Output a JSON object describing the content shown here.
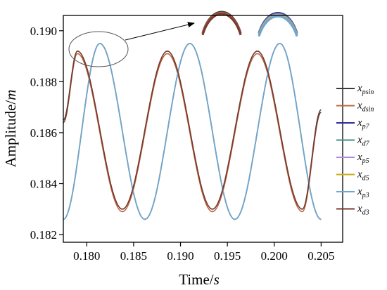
{
  "chart_data": {
    "type": "line",
    "xlabel": {
      "text": "Time/",
      "unit": "s"
    },
    "ylabel": {
      "text": "Amplitude/",
      "unit": "m"
    },
    "xlim": [
      0.1775,
      0.2073
    ],
    "ylim": [
      0.1817,
      0.1906
    ],
    "xticks": [
      0.18,
      0.185,
      0.19,
      0.195,
      0.2,
      0.205
    ],
    "xtick_labels": [
      "0.180",
      "0.185",
      "0.190",
      "0.195",
      "0.200",
      "0.205"
    ],
    "yticks": [
      0.182,
      0.184,
      0.186,
      0.188,
      0.19
    ],
    "ytick_labels": [
      "0.182",
      "0.184",
      "0.186",
      "0.188",
      "0.190"
    ],
    "grid": false,
    "legend_position": "right",
    "inset": "zoomed peaks shown above the plot, with an ellipse around the first peaks and an arrow pointing to the zoom",
    "series": [
      {
        "name": "x_psin",
        "base": "x",
        "sub": "psin",
        "color": "#3a3a3a",
        "x": [
          0.1775,
          0.179,
          0.1838,
          0.1886,
          0.1934,
          0.1982,
          0.203,
          0.205
        ],
        "y": [
          0.1865,
          0.1892,
          0.183,
          0.1892,
          0.183,
          0.1892,
          0.183,
          0.1869
        ]
      },
      {
        "name": "x_dsin",
        "base": "x",
        "sub": "dsin",
        "color": "#b8633a",
        "x": [
          0.1775,
          0.179,
          0.1838,
          0.1886,
          0.1934,
          0.1982,
          0.203,
          0.205
        ],
        "y": [
          0.1864,
          0.1891,
          0.1829,
          0.1891,
          0.1829,
          0.1891,
          0.1829,
          0.1868
        ]
      },
      {
        "name": "x_p7",
        "base": "x",
        "sub": "p7",
        "color": "#2c2c9c",
        "x": [
          0.1775,
          0.1814,
          0.1862,
          0.191,
          0.1958,
          0.2006,
          0.205
        ],
        "y": [
          0.1826,
          0.1895,
          0.1826,
          0.1895,
          0.1826,
          0.1895,
          0.1826
        ]
      },
      {
        "name": "x_d7",
        "base": "x",
        "sub": "d7",
        "color": "#3f8e8e",
        "x": [
          0.1775,
          0.1814,
          0.1862,
          0.191,
          0.1958,
          0.2006,
          0.205
        ],
        "y": [
          0.1826,
          0.1895,
          0.1826,
          0.1895,
          0.1826,
          0.1895,
          0.1826
        ]
      },
      {
        "name": "x_p5",
        "base": "x",
        "sub": "p5",
        "color": "#b58ad8",
        "x": [
          0.1775,
          0.1814,
          0.1862,
          0.191,
          0.1958,
          0.2006,
          0.205
        ],
        "y": [
          0.1826,
          0.1895,
          0.1826,
          0.1895,
          0.1826,
          0.1895,
          0.1826
        ]
      },
      {
        "name": "x_d5",
        "base": "x",
        "sub": "d5",
        "color": "#c8b020",
        "x": [
          0.1775,
          0.1814,
          0.1862,
          0.191,
          0.1958,
          0.2006,
          0.205
        ],
        "y": [
          0.1826,
          0.1895,
          0.1826,
          0.1895,
          0.1826,
          0.1895,
          0.1826
        ]
      },
      {
        "name": "x_p3",
        "base": "x",
        "sub": "p3",
        "color": "#6aa6d8",
        "x": [
          0.1775,
          0.1814,
          0.1862,
          0.191,
          0.1958,
          0.2006,
          0.205
        ],
        "y": [
          0.1826,
          0.1895,
          0.1826,
          0.1895,
          0.1826,
          0.1895,
          0.1826
        ]
      },
      {
        "name": "x_d3",
        "base": "x",
        "sub": "d3",
        "color": "#7a3a2e",
        "x": [
          0.1775,
          0.179,
          0.1838,
          0.1886,
          0.1934,
          0.1982,
          0.203,
          0.205
        ],
        "y": [
          0.1864,
          0.1892,
          0.183,
          0.1892,
          0.183,
          0.1892,
          0.183,
          0.1868
        ]
      }
    ]
  }
}
